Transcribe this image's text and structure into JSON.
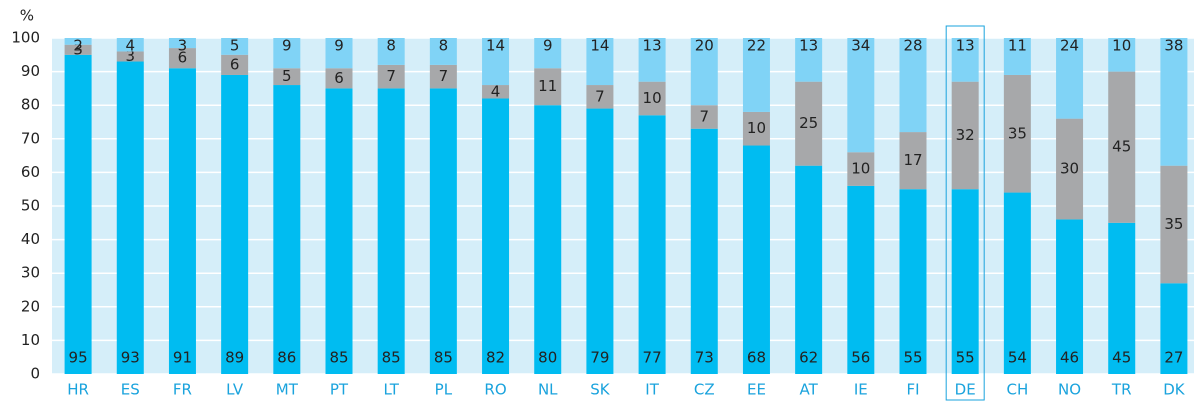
{
  "chart_data": {
    "type": "stacked_bar",
    "y_label": "%",
    "categories": [
      "HR",
      "ES",
      "FR",
      "LV",
      "MT",
      "PT",
      "LT",
      "PL",
      "RO",
      "NL",
      "SK",
      "IT",
      "CZ",
      "EE",
      "AT",
      "IE",
      "FI",
      "DE",
      "CH",
      "NO",
      "TR",
      "DK"
    ],
    "series": [
      {
        "color": "#00bcf1",
        "values": [
          95,
          93,
          91,
          89,
          86,
          85,
          85,
          85,
          82,
          80,
          79,
          77,
          73,
          68,
          62,
          56,
          55,
          55,
          54,
          46,
          45,
          27
        ]
      },
      {
        "color": "#a7a8aa",
        "values": [
          3,
          3,
          6,
          6,
          5,
          6,
          7,
          7,
          4,
          11,
          7,
          10,
          7,
          10,
          25,
          10,
          17,
          32,
          35,
          30,
          45,
          35
        ]
      },
      {
        "color": "#80d3f6",
        "values": [
          2,
          4,
          3,
          5,
          9,
          9,
          8,
          8,
          14,
          9,
          14,
          13,
          20,
          22,
          13,
          34,
          28,
          13,
          11,
          24,
          10,
          38
        ]
      }
    ],
    "ylim": [
      0,
      100
    ],
    "yticks": [
      0,
      10,
      20,
      30,
      40,
      50,
      60,
      70,
      80,
      90,
      100
    ],
    "grid": true,
    "highlight": "DE"
  }
}
